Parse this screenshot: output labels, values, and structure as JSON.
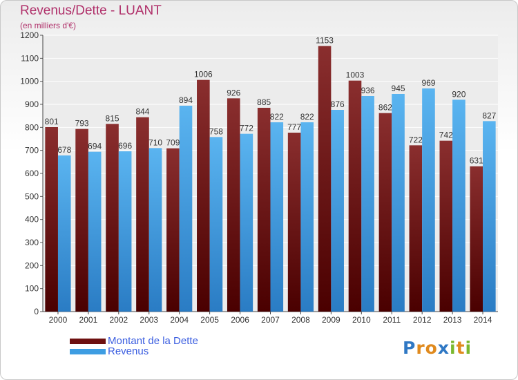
{
  "header": {
    "title": "Revenus/Dette - LUANT",
    "subtitle": "(en milliers d'€)"
  },
  "legend": {
    "items": [
      {
        "label": "Montant de la Dette",
        "color": "#6e1010"
      },
      {
        "label": "Revenus",
        "color": "#3e9de2"
      }
    ]
  },
  "logo": {
    "letters": [
      {
        "ch": "P",
        "color": "#2f78c4"
      },
      {
        "ch": "r",
        "color": "#e08a1e"
      },
      {
        "ch": "o",
        "color": "#e08a1e"
      },
      {
        "ch": "x",
        "color": "#2f78c4"
      },
      {
        "ch": "i",
        "color": "#7ab82e"
      },
      {
        "ch": "t",
        "color": "#e08a1e"
      },
      {
        "ch": "i",
        "color": "#7ab82e"
      }
    ]
  },
  "chart_data": {
    "type": "bar",
    "title": "Revenus/Dette - LUANT",
    "subtitle": "(en milliers d'€)",
    "categories": [
      "2000",
      "2001",
      "2002",
      "2003",
      "2004",
      "2005",
      "2006",
      "2007",
      "2008",
      "2009",
      "2010",
      "2011",
      "2012",
      "2013",
      "2014"
    ],
    "series": [
      {
        "name": "Montant de la Dette",
        "color": "#6e1010",
        "values": [
          801,
          793,
          815,
          844,
          709,
          1006,
          926,
          885,
          777,
          1153,
          1003,
          862,
          722,
          742,
          631
        ]
      },
      {
        "name": "Revenus",
        "color": "#3e9de2",
        "values": [
          678,
          694,
          696,
          710,
          894,
          758,
          772,
          822,
          822,
          876,
          936,
          945,
          969,
          920,
          827
        ]
      }
    ],
    "ylim": [
      0,
      1200
    ],
    "yticks": [
      0,
      100,
      200,
      300,
      400,
      500,
      600,
      700,
      800,
      900,
      1000,
      1100,
      1200
    ],
    "grid": true,
    "legend_position": "bottom-left"
  }
}
